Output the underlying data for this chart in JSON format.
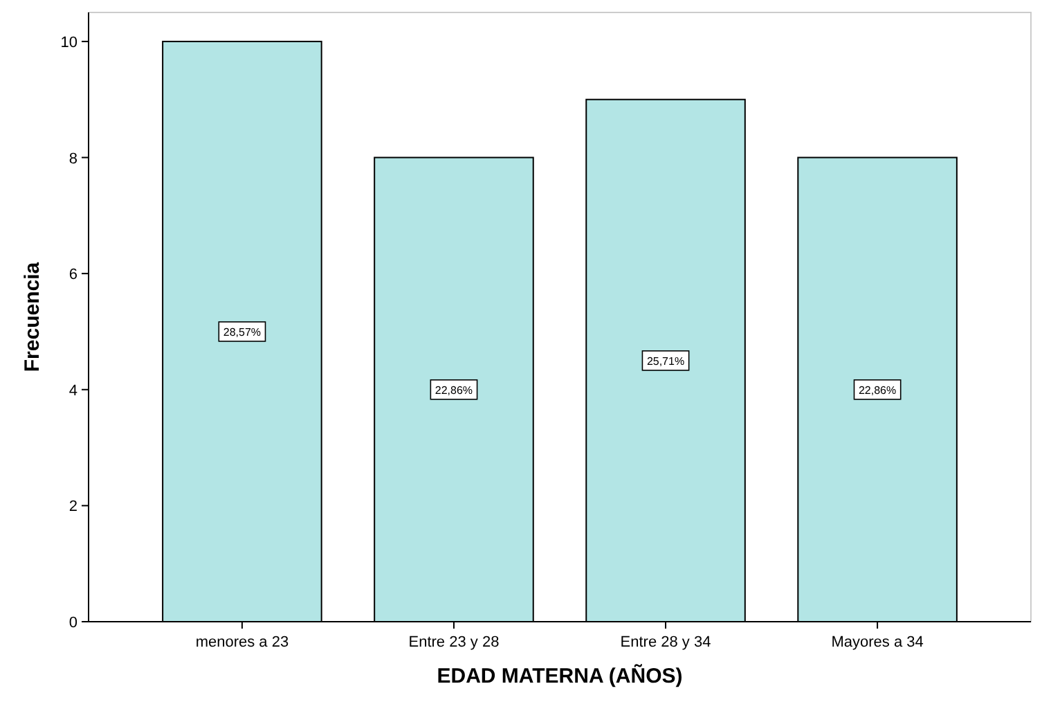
{
  "chart_data": {
    "type": "bar",
    "xlabel": "EDAD MATERNA (AÑOS)",
    "ylabel": "Frecuencia",
    "categories": [
      "menores a 23",
      "Entre 23 y 28",
      "Entre 28 y 34",
      "Mayores a 34"
    ],
    "values": [
      10,
      8,
      9,
      8
    ],
    "color": "#b3e5e5",
    "annotations": [
      {
        "text": "28,57%",
        "x": "menores a 23",
        "y": 5
      },
      {
        "text": "22,86%",
        "x": "Entre 23 y 28",
        "y": 4
      },
      {
        "text": "25,71%",
        "x": "Entre 28 y 34",
        "y": 4.5
      },
      {
        "text": "22,86%",
        "x": "Mayores a 34",
        "y": 4
      }
    ],
    "ylim": [
      0,
      10.5
    ],
    "yticks": [
      0,
      2,
      4,
      6,
      8,
      10
    ],
    "grid": false
  }
}
